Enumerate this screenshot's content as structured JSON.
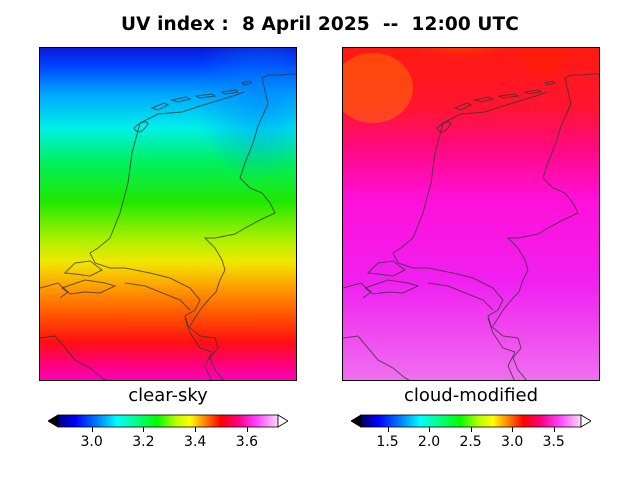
{
  "title": "UV index :  8 April 2025  --  12:00 UTC",
  "panels": [
    {
      "label": "clear-sky",
      "colorbar": {
        "ticks": [
          "3.0",
          "3.2",
          "3.4",
          "3.6"
        ],
        "range": [
          2.87,
          3.72
        ],
        "extend": "both"
      }
    },
    {
      "label": "cloud-modified",
      "colorbar": {
        "ticks": [
          "1.5",
          "2.0",
          "2.5",
          "3.0",
          "3.5"
        ],
        "range": [
          1.18,
          3.83
        ],
        "extend": "both"
      }
    }
  ],
  "colormap": "gist_ncar-like: black, blue, cyan, green, yellow, orange, red, magenta, pink, white",
  "region": "Netherlands"
}
